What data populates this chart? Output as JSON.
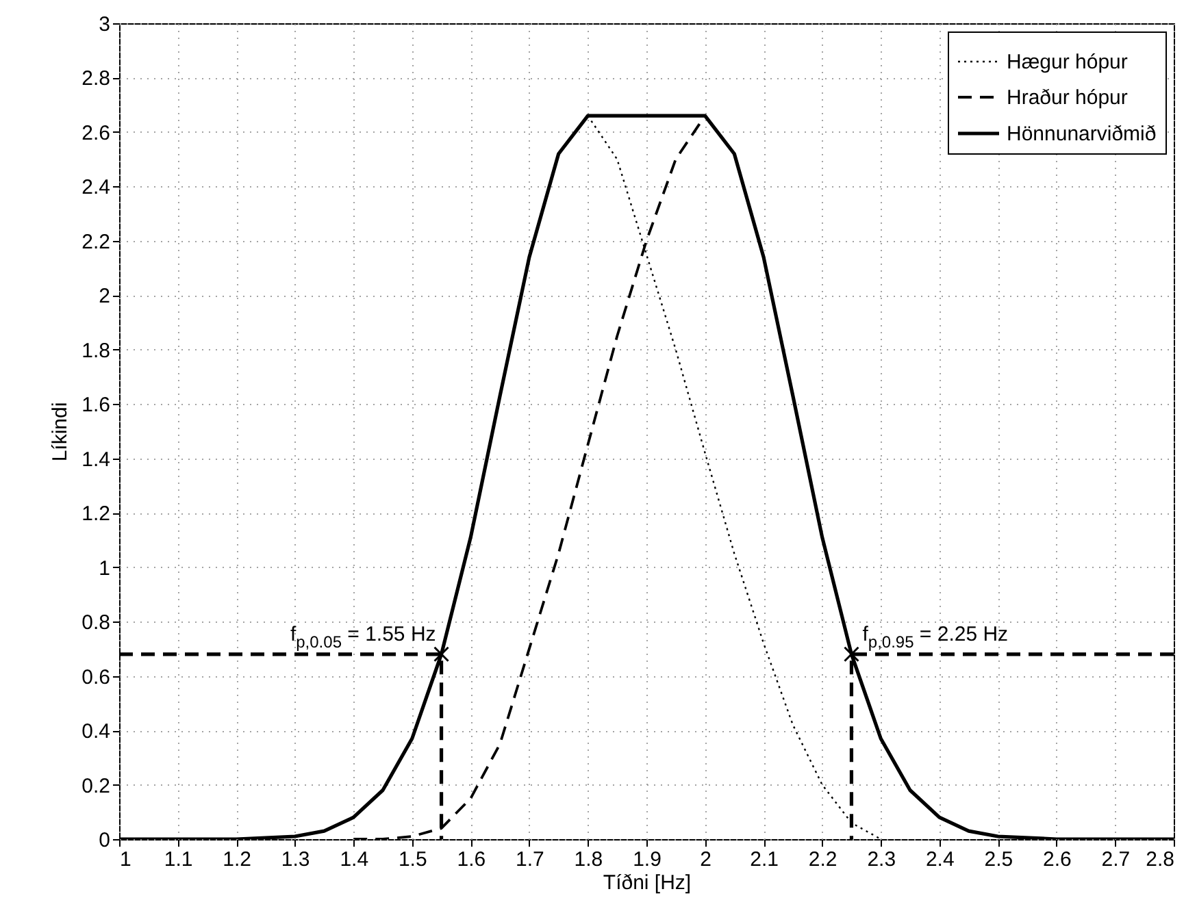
{
  "chart_data": {
    "type": "line",
    "xlabel": "Tíðni [Hz]",
    "ylabel": "Líkindi",
    "xlim": [
      1,
      2.8
    ],
    "xticks": [
      1,
      1.1,
      1.2,
      1.3,
      1.4,
      1.5,
      1.6,
      1.7,
      1.8,
      1.9,
      2,
      2.1,
      2.2,
      2.3,
      2.4,
      2.5,
      2.6,
      2.7,
      2.8
    ],
    "ylim": [
      0,
      3
    ],
    "yticks": [
      0,
      0.2,
      0.4,
      0.6,
      0.8,
      1,
      1.2,
      1.4,
      1.6,
      1.8,
      2,
      2.2,
      2.4,
      2.6,
      2.8,
      3
    ],
    "grid": true,
    "legend": "top right",
    "series": [
      {
        "name": "Hægur hópur",
        "color": "#000000",
        "line_style": "dotted",
        "x": [
          1.8,
          1.85,
          1.9,
          1.95,
          2,
          2.05,
          2.1,
          2.15,
          2.2,
          2.25,
          2.3
        ],
        "values": [
          2.66,
          2.5,
          2.15,
          1.8,
          1.42,
          1.05,
          0.72,
          0.42,
          0.2,
          0.06,
          0
        ]
      },
      {
        "name": "Hraður hópur",
        "color": "#000000",
        "line_style": "dashed",
        "x": [
          1.4,
          1.45,
          1.5,
          1.55,
          1.6,
          1.65,
          1.7,
          1.75,
          1.8,
          1.85,
          1.9,
          1.95,
          2
        ],
        "values": [
          0,
          0,
          0.01,
          0.04,
          0.15,
          0.35,
          0.7,
          1.05,
          1.45,
          1.85,
          2.2,
          2.5,
          2.66
        ]
      },
      {
        "name": "Hönnunarviðmið",
        "color": "#000000",
        "line_style": "solid",
        "x": [
          1,
          1.2,
          1.3,
          1.35,
          1.4,
          1.45,
          1.5,
          1.55,
          1.6,
          1.65,
          1.7,
          1.75,
          1.8,
          2,
          2.05,
          2.1,
          2.15,
          2.2,
          2.25,
          2.3,
          2.35,
          2.4,
          2.45,
          2.5,
          2.6,
          2.8
        ],
        "values": [
          0,
          0,
          0.01,
          0.03,
          0.08,
          0.18,
          0.37,
          0.68,
          1.11,
          1.63,
          2.14,
          2.52,
          2.66,
          2.66,
          2.52,
          2.14,
          1.63,
          1.11,
          0.68,
          0.37,
          0.18,
          0.08,
          0.03,
          0.01,
          0,
          0
        ]
      },
      {
        "color": "#000000",
        "line_style": "dashed",
        "x": [
          1,
          1.55,
          1.55
        ],
        "values": [
          0.68,
          0.68,
          0
        ]
      },
      {
        "color": "#000000",
        "line_style": "dashed",
        "x": [
          2.8,
          2.25,
          2.25
        ],
        "values": [
          0.68,
          0.68,
          0
        ]
      },
      {
        "type": "scatter",
        "color": "#000000",
        "marker": "cross",
        "x": [
          1.55,
          2.25
        ],
        "values": [
          0.68,
          0.68
        ]
      }
    ],
    "annotations": [
      {
        "text": "f$_{p,0.05}$ = 1.55 Hz",
        "x": 1.55,
        "y": 0.68
      },
      {
        "text": "f$_{p,0.95}$ = 2.25 Hz",
        "x": 2.25,
        "y": 0.68
      }
    ]
  }
}
